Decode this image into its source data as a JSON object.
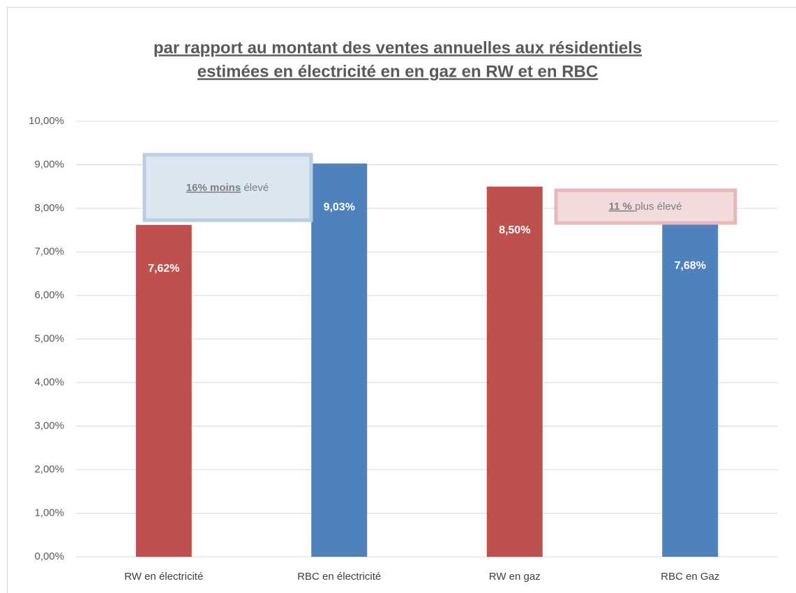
{
  "chart_data": {
    "type": "bar",
    "title": [
      "par rapport au montant des ventes annuelles aux résidentiels",
      "estimées en électricité en en gaz en RW et en RBC"
    ],
    "categories": [
      "RW en électricité",
      "RBC en électricité",
      "RW en gaz",
      "RBC en Gaz"
    ],
    "values": [
      7.62,
      9.03,
      8.5,
      7.68
    ],
    "value_labels": [
      "7,62%",
      "9,03%",
      "8,50%",
      "7,68%"
    ],
    "colors": [
      "#c0504d",
      "#4f81bd",
      "#c0504d",
      "#4f81bd"
    ],
    "ylim": [
      0,
      10
    ],
    "yticks": [
      {
        "value": 0,
        "label": "0,00%"
      },
      {
        "value": 1,
        "label": "1,00%"
      },
      {
        "value": 2,
        "label": "2,00%"
      },
      {
        "value": 3,
        "label": "3,00%"
      },
      {
        "value": 4,
        "label": "4,00%"
      },
      {
        "value": 5,
        "label": "5,00%"
      },
      {
        "value": 6,
        "label": "6,00%"
      },
      {
        "value": 7,
        "label": "7,00%"
      },
      {
        "value": 8,
        "label": "8,00%"
      },
      {
        "value": 9,
        "label": "9,00%"
      },
      {
        "value": 10,
        "label": "10,00%"
      }
    ],
    "grid": true,
    "annotations": [
      {
        "parts": [
          {
            "text": "16% moins",
            "emphasis": true
          },
          {
            "text": " élevé",
            "emphasis": false
          }
        ]
      },
      {
        "parts": [
          {
            "text": "11 % ",
            "emphasis": true
          },
          {
            "text": "plus élevé",
            "emphasis": false
          }
        ]
      }
    ]
  }
}
